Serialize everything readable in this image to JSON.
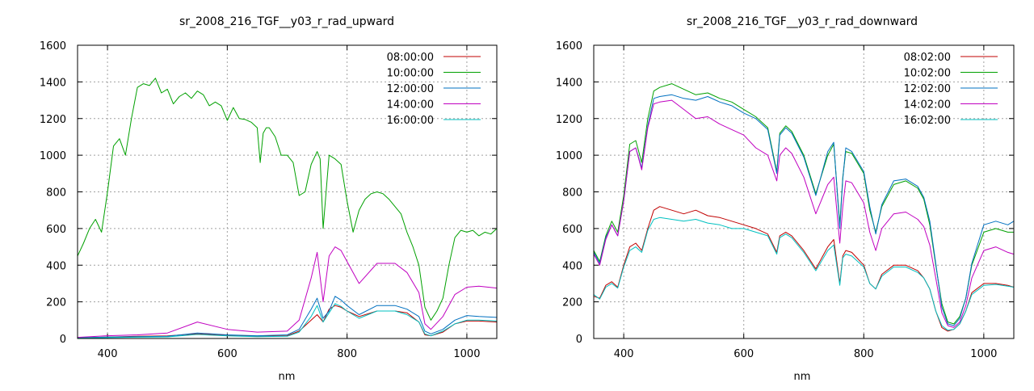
{
  "chart_data": [
    {
      "type": "line",
      "title": "sr_2008_216_TGF__y03_r_rad_upward",
      "xlabel": "nm",
      "ylabel": "",
      "xlim": [
        350,
        1050
      ],
      "ylim": [
        0,
        1600
      ],
      "xticks": [
        400,
        600,
        800,
        1000
      ],
      "yticks": [
        0,
        200,
        400,
        600,
        800,
        1000,
        1200,
        1400,
        1600
      ],
      "grid": true,
      "legend_position": "top-right",
      "series": [
        {
          "name": "08:00:00",
          "color": "#c00000",
          "x": [
            350,
            400,
            450,
            500,
            550,
            600,
            650,
            700,
            720,
            740,
            750,
            760,
            770,
            780,
            790,
            800,
            820,
            850,
            880,
            900,
            920,
            930,
            940,
            960,
            980,
            1000,
            1020,
            1050
          ],
          "y": [
            3,
            8,
            12,
            14,
            25,
            18,
            12,
            15,
            40,
            100,
            130,
            90,
            160,
            180,
            170,
            150,
            120,
            150,
            150,
            140,
            90,
            20,
            15,
            35,
            80,
            95,
            95,
            90
          ]
        },
        {
          "name": "10:00:00",
          "color": "#00a000",
          "x": [
            350,
            360,
            370,
            380,
            390,
            400,
            410,
            420,
            430,
            440,
            450,
            460,
            470,
            480,
            490,
            500,
            510,
            520,
            530,
            540,
            550,
            560,
            570,
            580,
            590,
            600,
            610,
            620,
            630,
            640,
            650,
            655,
            660,
            665,
            670,
            680,
            690,
            700,
            710,
            720,
            730,
            740,
            750,
            755,
            760,
            765,
            770,
            780,
            790,
            800,
            810,
            820,
            830,
            840,
            850,
            860,
            870,
            880,
            890,
            900,
            910,
            920,
            930,
            940,
            950,
            960,
            970,
            980,
            990,
            1000,
            1010,
            1020,
            1030,
            1040,
            1050
          ],
          "y": [
            450,
            520,
            600,
            650,
            580,
            800,
            1050,
            1090,
            1000,
            1200,
            1370,
            1390,
            1380,
            1420,
            1340,
            1360,
            1280,
            1320,
            1340,
            1310,
            1350,
            1330,
            1270,
            1290,
            1270,
            1190,
            1260,
            1200,
            1195,
            1180,
            1150,
            960,
            1120,
            1150,
            1150,
            1100,
            1000,
            1000,
            960,
            780,
            800,
            950,
            1020,
            980,
            600,
            800,
            1000,
            980,
            950,
            750,
            580,
            700,
            760,
            790,
            800,
            790,
            760,
            720,
            680,
            580,
            500,
            400,
            170,
            100,
            150,
            220,
            400,
            550,
            590,
            580,
            590,
            560,
            580,
            570,
            600
          ]
        },
        {
          "name": "12:00:00",
          "color": "#0070c0",
          "x": [
            350,
            400,
            450,
            500,
            550,
            600,
            650,
            700,
            720,
            740,
            750,
            760,
            770,
            780,
            790,
            800,
            820,
            850,
            880,
            900,
            920,
            930,
            940,
            960,
            980,
            1000,
            1020,
            1050
          ],
          "y": [
            4,
            8,
            10,
            12,
            30,
            20,
            15,
            20,
            50,
            160,
            220,
            110,
            150,
            230,
            210,
            180,
            130,
            180,
            180,
            160,
            120,
            40,
            25,
            50,
            100,
            125,
            120,
            115
          ]
        },
        {
          "name": "14:00:00",
          "color": "#c000c0",
          "x": [
            350,
            400,
            450,
            500,
            550,
            600,
            650,
            700,
            720,
            740,
            750,
            760,
            770,
            780,
            790,
            800,
            820,
            850,
            880,
            900,
            920,
            930,
            940,
            960,
            980,
            1000,
            1020,
            1050
          ],
          "y": [
            6,
            15,
            20,
            30,
            90,
            50,
            35,
            40,
            100,
            330,
            470,
            200,
            450,
            500,
            480,
            420,
            300,
            410,
            410,
            360,
            250,
            80,
            50,
            120,
            240,
            280,
            285,
            275
          ]
        },
        {
          "name": "16:00:00",
          "color": "#00c0c0",
          "x": [
            350,
            400,
            450,
            500,
            550,
            600,
            650,
            700,
            720,
            740,
            750,
            760,
            770,
            780,
            790,
            800,
            820,
            850,
            880,
            900,
            920,
            930,
            940,
            960,
            980,
            1000,
            1020,
            1050
          ],
          "y": [
            2,
            5,
            7,
            9,
            22,
            14,
            10,
            12,
            35,
            120,
            180,
            90,
            140,
            190,
            175,
            150,
            110,
            150,
            150,
            130,
            90,
            25,
            15,
            40,
            80,
            100,
            100,
            95
          ]
        }
      ]
    },
    {
      "type": "line",
      "title": "sr_2008_216_TGF__y03_r_rad_downward",
      "xlabel": "nm",
      "ylabel": "",
      "xlim": [
        350,
        1050
      ],
      "ylim": [
        0,
        1600
      ],
      "xticks": [
        400,
        600,
        800,
        1000
      ],
      "yticks": [
        0,
        200,
        400,
        600,
        800,
        1000,
        1200,
        1400,
        1600
      ],
      "grid": true,
      "legend_position": "top-right",
      "series": [
        {
          "name": "08:02:00",
          "color": "#c00000",
          "x": [
            350,
            360,
            370,
            380,
            390,
            400,
            410,
            420,
            430,
            440,
            450,
            460,
            480,
            500,
            520,
            540,
            560,
            580,
            600,
            620,
            640,
            655,
            660,
            670,
            680,
            700,
            720,
            740,
            750,
            760,
            765,
            770,
            780,
            800,
            810,
            820,
            830,
            850,
            870,
            890,
            900,
            910,
            920,
            930,
            940,
            950,
            960,
            970,
            980,
            1000,
            1020,
            1040,
            1050
          ],
          "y": [
            230,
            220,
            290,
            310,
            280,
            400,
            500,
            520,
            480,
            600,
            700,
            720,
            700,
            680,
            700,
            670,
            660,
            640,
            620,
            600,
            570,
            470,
            560,
            580,
            560,
            480,
            380,
            500,
            540,
            300,
            450,
            480,
            470,
            400,
            300,
            270,
            350,
            400,
            400,
            370,
            330,
            270,
            150,
            60,
            40,
            50,
            80,
            150,
            250,
            300,
            300,
            290,
            280
          ]
        },
        {
          "name": "10:02:00",
          "color": "#00a000",
          "x": [
            350,
            360,
            370,
            380,
            390,
            400,
            410,
            420,
            430,
            440,
            450,
            460,
            480,
            500,
            520,
            540,
            560,
            580,
            600,
            620,
            640,
            655,
            660,
            670,
            680,
            700,
            720,
            740,
            750,
            760,
            765,
            770,
            780,
            800,
            810,
            820,
            830,
            850,
            870,
            890,
            900,
            910,
            920,
            930,
            940,
            950,
            960,
            970,
            980,
            1000,
            1020,
            1040,
            1050
          ],
          "y": [
            480,
            420,
            560,
            640,
            580,
            780,
            1060,
            1080,
            960,
            1200,
            1350,
            1370,
            1390,
            1360,
            1330,
            1340,
            1310,
            1290,
            1250,
            1210,
            1150,
            910,
            1120,
            1160,
            1130,
            1000,
            790,
            1000,
            1060,
            620,
            880,
            1020,
            1010,
            900,
            700,
            580,
            720,
            840,
            860,
            820,
            760,
            620,
            400,
            190,
            90,
            80,
            120,
            220,
            400,
            580,
            600,
            580,
            580
          ]
        },
        {
          "name": "12:02:00",
          "color": "#0070c0",
          "x": [
            350,
            360,
            370,
            380,
            390,
            400,
            410,
            420,
            430,
            440,
            450,
            460,
            480,
            500,
            520,
            540,
            560,
            580,
            600,
            620,
            640,
            655,
            660,
            670,
            680,
            700,
            720,
            740,
            750,
            760,
            765,
            770,
            780,
            800,
            810,
            820,
            830,
            850,
            870,
            890,
            900,
            910,
            920,
            930,
            940,
            950,
            960,
            970,
            980,
            1000,
            1020,
            1040,
            1050
          ],
          "y": [
            470,
            410,
            550,
            620,
            560,
            750,
            1020,
            1040,
            930,
            1160,
            1310,
            1320,
            1330,
            1310,
            1300,
            1320,
            1290,
            1270,
            1230,
            1200,
            1140,
            900,
            1110,
            1150,
            1120,
            990,
            780,
            1020,
            1070,
            600,
            870,
            1040,
            1020,
            910,
            720,
            570,
            730,
            860,
            870,
            830,
            770,
            640,
            410,
            170,
            80,
            70,
            110,
            220,
            410,
            620,
            640,
            620,
            640
          ]
        },
        {
          "name": "14:02:00",
          "color": "#c000c0",
          "x": [
            350,
            360,
            370,
            380,
            390,
            400,
            410,
            420,
            430,
            440,
            450,
            460,
            480,
            500,
            520,
            540,
            560,
            580,
            600,
            620,
            640,
            655,
            660,
            670,
            680,
            700,
            720,
            740,
            750,
            760,
            765,
            770,
            780,
            800,
            810,
            820,
            830,
            850,
            870,
            890,
            900,
            910,
            920,
            930,
            940,
            950,
            960,
            970,
            980,
            1000,
            1020,
            1040,
            1050
          ],
          "y": [
            460,
            400,
            540,
            620,
            560,
            750,
            1020,
            1040,
            920,
            1150,
            1280,
            1290,
            1300,
            1250,
            1200,
            1210,
            1170,
            1140,
            1110,
            1040,
            1000,
            860,
            1000,
            1040,
            1010,
            880,
            680,
            840,
            880,
            520,
            720,
            860,
            850,
            740,
            580,
            480,
            600,
            680,
            690,
            650,
            610,
            510,
            330,
            140,
            70,
            60,
            90,
            180,
            330,
            480,
            500,
            470,
            460
          ]
        },
        {
          "name": "16:02:00",
          "color": "#00c0c0",
          "x": [
            350,
            360,
            370,
            380,
            390,
            400,
            410,
            420,
            430,
            440,
            450,
            460,
            480,
            500,
            520,
            540,
            560,
            580,
            600,
            620,
            640,
            655,
            660,
            670,
            680,
            700,
            720,
            740,
            750,
            760,
            765,
            770,
            780,
            800,
            810,
            820,
            830,
            850,
            870,
            890,
            900,
            910,
            920,
            930,
            940,
            950,
            960,
            970,
            980,
            1000,
            1020,
            1040,
            1050
          ],
          "y": [
            240,
            215,
            280,
            300,
            275,
            390,
            480,
            500,
            470,
            590,
            650,
            660,
            650,
            640,
            650,
            630,
            620,
            600,
            600,
            580,
            560,
            460,
            550,
            570,
            550,
            470,
            370,
            480,
            510,
            290,
            440,
            460,
            450,
            390,
            300,
            270,
            340,
            390,
            390,
            360,
            330,
            270,
            150,
            70,
            45,
            50,
            80,
            150,
            240,
            290,
            295,
            285,
            280
          ]
        }
      ]
    }
  ]
}
